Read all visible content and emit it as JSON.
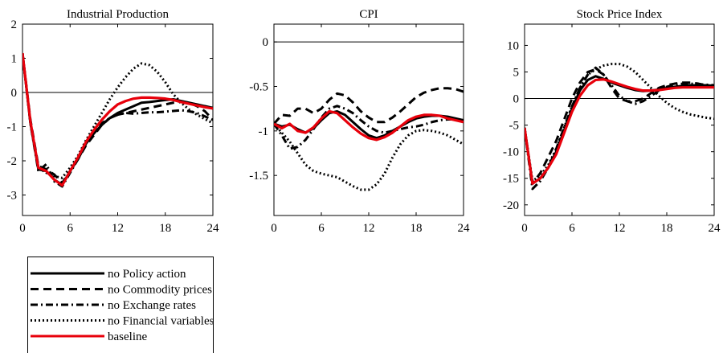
{
  "chart_data": [
    {
      "type": "line",
      "title": "Industrial Production",
      "xlim": [
        0,
        24
      ],
      "ylim": [
        -3.6,
        2
      ],
      "xticks": [
        0,
        6,
        12,
        18,
        24
      ],
      "yticks": [
        2,
        1,
        0,
        -1,
        -2,
        -3
      ],
      "zero_line": true,
      "x": [
        0,
        1,
        2,
        3,
        4,
        5,
        6,
        7,
        8,
        9,
        10,
        11,
        12,
        13,
        14,
        15,
        16,
        17,
        18,
        19,
        20,
        21,
        22,
        23,
        24
      ],
      "series": [
        {
          "key": "policy",
          "values": [
            1.15,
            -0.9,
            -2.25,
            -2.3,
            -2.55,
            -2.7,
            -2.3,
            -1.95,
            -1.5,
            -1.2,
            -0.95,
            -0.75,
            -0.6,
            -0.5,
            -0.4,
            -0.3,
            -0.28,
            -0.25,
            -0.22,
            -0.2,
            -0.25,
            -0.3,
            -0.35,
            -0.4,
            -0.45
          ]
        },
        {
          "key": "commodity",
          "values": [
            1.15,
            -0.8,
            -2.15,
            -2.25,
            -2.4,
            -2.65,
            -2.3,
            -1.95,
            -1.55,
            -1.25,
            -0.95,
            -0.75,
            -0.65,
            -0.6,
            -0.55,
            -0.5,
            -0.45,
            -0.4,
            -0.35,
            -0.3,
            -0.28,
            -0.3,
            -0.4,
            -0.55,
            -0.8
          ]
        },
        {
          "key": "exchange",
          "values": [
            1.15,
            -0.9,
            -2.3,
            -2.1,
            -2.6,
            -2.75,
            -2.35,
            -1.95,
            -1.45,
            -1.15,
            -0.9,
            -0.75,
            -0.65,
            -0.6,
            -0.62,
            -0.6,
            -0.58,
            -0.58,
            -0.56,
            -0.54,
            -0.52,
            -0.55,
            -0.6,
            -0.7,
            -0.8
          ]
        },
        {
          "key": "financial",
          "values": [
            1.15,
            -0.9,
            -2.2,
            -2.35,
            -2.45,
            -2.5,
            -2.2,
            -1.85,
            -1.4,
            -1.0,
            -0.6,
            -0.2,
            0.15,
            0.45,
            0.7,
            0.85,
            0.8,
            0.6,
            0.3,
            -0.05,
            -0.3,
            -0.5,
            -0.65,
            -0.78,
            -0.9
          ]
        },
        {
          "key": "baseline",
          "values": [
            1.15,
            -0.85,
            -2.2,
            -2.3,
            -2.55,
            -2.72,
            -2.3,
            -1.9,
            -1.45,
            -1.1,
            -0.8,
            -0.55,
            -0.35,
            -0.25,
            -0.18,
            -0.15,
            -0.15,
            -0.16,
            -0.18,
            -0.22,
            -0.28,
            -0.33,
            -0.38,
            -0.43,
            -0.47
          ]
        }
      ]
    },
    {
      "type": "line",
      "title": "CPI",
      "xlim": [
        0,
        24
      ],
      "ylim": [
        -1.95,
        0.2
      ],
      "xticks": [
        0,
        6,
        12,
        18,
        24
      ],
      "yticks": [
        0,
        -0.5,
        -1,
        -1.5
      ],
      "zero_line": true,
      "x": [
        0,
        1,
        2,
        3,
        4,
        5,
        6,
        7,
        8,
        9,
        10,
        11,
        12,
        13,
        14,
        15,
        16,
        17,
        18,
        19,
        20,
        21,
        22,
        23,
        24
      ],
      "series": [
        {
          "key": "policy",
          "values": [
            -0.92,
            -0.95,
            -0.93,
            -0.98,
            -1.02,
            -0.97,
            -0.88,
            -0.8,
            -0.78,
            -0.82,
            -0.9,
            -0.98,
            -1.05,
            -1.08,
            -1.05,
            -1.0,
            -0.95,
            -0.9,
            -0.86,
            -0.84,
            -0.83,
            -0.83,
            -0.84,
            -0.86,
            -0.88
          ]
        },
        {
          "key": "commodity",
          "values": [
            -0.92,
            -0.82,
            -0.83,
            -0.75,
            -0.75,
            -0.8,
            -0.75,
            -0.65,
            -0.58,
            -0.6,
            -0.68,
            -0.78,
            -0.85,
            -0.9,
            -0.9,
            -0.85,
            -0.78,
            -0.7,
            -0.62,
            -0.57,
            -0.54,
            -0.52,
            -0.52,
            -0.53,
            -0.56
          ]
        },
        {
          "key": "exchange",
          "values": [
            -0.92,
            -1.05,
            -1.2,
            -1.18,
            -1.1,
            -0.98,
            -0.85,
            -0.75,
            -0.72,
            -0.75,
            -0.8,
            -0.88,
            -0.95,
            -1.0,
            -1.02,
            -1.0,
            -0.98,
            -0.96,
            -0.95,
            -0.93,
            -0.9,
            -0.88,
            -0.87,
            -0.87,
            -0.88
          ]
        },
        {
          "key": "financial",
          "values": [
            -0.92,
            -1.02,
            -1.12,
            -1.25,
            -1.38,
            -1.45,
            -1.48,
            -1.5,
            -1.52,
            -1.57,
            -1.62,
            -1.66,
            -1.66,
            -1.6,
            -1.48,
            -1.3,
            -1.15,
            -1.05,
            -1.0,
            -0.99,
            -1.0,
            -1.02,
            -1.05,
            -1.1,
            -1.15
          ]
        },
        {
          "key": "baseline",
          "values": [
            -0.92,
            -0.97,
            -0.92,
            -1.0,
            -1.02,
            -0.96,
            -0.86,
            -0.78,
            -0.8,
            -0.88,
            -0.96,
            -1.03,
            -1.08,
            -1.1,
            -1.07,
            -1.02,
            -0.95,
            -0.88,
            -0.84,
            -0.82,
            -0.82,
            -0.83,
            -0.86,
            -0.88,
            -0.9
          ]
        }
      ]
    },
    {
      "type": "line",
      "title": "Stock Price Index",
      "xlim": [
        0,
        24
      ],
      "ylim": [
        -22,
        14
      ],
      "xticks": [
        0,
        6,
        12,
        18,
        24
      ],
      "yticks": [
        10,
        5,
        0,
        -5,
        -10,
        -15,
        -20
      ],
      "zero_line": true,
      "x": [
        0,
        1,
        2,
        3,
        4,
        5,
        6,
        7,
        8,
        9,
        10,
        11,
        12,
        13,
        14,
        15,
        16,
        17,
        18,
        19,
        20,
        21,
        22,
        23,
        24
      ],
      "series": [
        {
          "key": "policy",
          "values": [
            -5.5,
            -16,
            -15,
            -13,
            -10,
            -6,
            -2,
            1.5,
            3.5,
            4.2,
            3.7,
            3.0,
            2.5,
            2.0,
            1.6,
            1.4,
            1.5,
            1.7,
            2.0,
            2.2,
            2.4,
            2.5,
            2.5,
            2.5,
            2.4
          ]
        },
        {
          "key": "commodity",
          "values": [
            -5.5,
            -16,
            -14,
            -11,
            -8,
            -4,
            0,
            3,
            5,
            5.5,
            4.5,
            2,
            0,
            -0.5,
            -0.5,
            0,
            1,
            2,
            2.5,
            2.8,
            3,
            3,
            2.8,
            2.5,
            2.2
          ]
        },
        {
          "key": "exchange",
          "values": [
            -5.5,
            -17,
            -15.5,
            -13,
            -9.5,
            -5.5,
            -1.5,
            2,
            4.5,
            5.8,
            4.5,
            2.5,
            0.5,
            -0.5,
            -1,
            -0.5,
            0.5,
            1.5,
            2.2,
            2.6,
            2.8,
            2.8,
            2.7,
            2.6,
            2.5
          ]
        },
        {
          "key": "financial",
          "values": [
            -5.5,
            -15.5,
            -14.5,
            -12.5,
            -9.5,
            -5.5,
            -1.5,
            2,
            4.5,
            5.5,
            6.2,
            6.5,
            6.5,
            6,
            5,
            3.5,
            2,
            0.5,
            -0.8,
            -1.8,
            -2.5,
            -3,
            -3.3,
            -3.6,
            -3.8
          ]
        },
        {
          "key": "baseline",
          "values": [
            -5.5,
            -16,
            -15,
            -13,
            -10.5,
            -6.5,
            -2.5,
            0.5,
            2.5,
            3.5,
            3.6,
            3.2,
            2.7,
            2.2,
            1.8,
            1.5,
            1.5,
            1.6,
            1.8,
            2.0,
            2.1,
            2.1,
            2.1,
            2.1,
            2.1
          ]
        }
      ]
    }
  ],
  "legend": {
    "position": "bottom-left",
    "entries": [
      {
        "key": "policy",
        "label": "no Policy action"
      },
      {
        "key": "commodity",
        "label": "no Commodity prices"
      },
      {
        "key": "exchange",
        "label": "no Exchange rates"
      },
      {
        "key": "financial",
        "label": "no Financial variables"
      },
      {
        "key": "baseline",
        "label": "baseline"
      }
    ]
  },
  "styles": {
    "policy": {
      "color": "#000000",
      "dash": ""
    },
    "commodity": {
      "color": "#000000",
      "dash": "10,6"
    },
    "exchange": {
      "color": "#000000",
      "dash": "9,4,2,4"
    },
    "financial": {
      "color": "#000000",
      "dash": "2,3"
    },
    "baseline": {
      "color": "#e8000b",
      "dash": ""
    }
  }
}
